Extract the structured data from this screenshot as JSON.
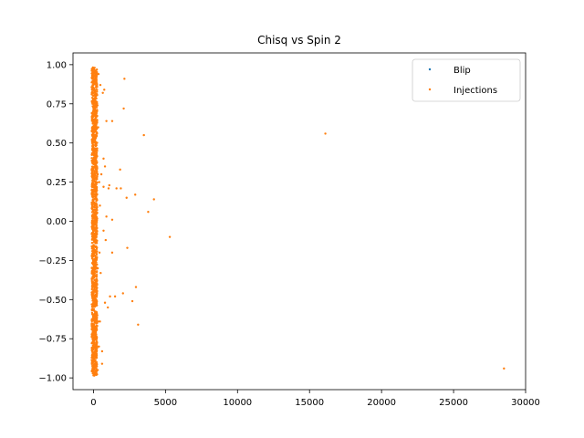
{
  "chart_data": {
    "type": "scatter",
    "title": "Chisq vs Spin 2",
    "xlabel": "",
    "ylabel": "",
    "xlim": [
      -1420,
      30000
    ],
    "ylim": [
      -1.075,
      1.075
    ],
    "xticks": [
      0,
      5000,
      10000,
      15000,
      20000,
      25000,
      30000
    ],
    "xtick_labels": [
      "0",
      "5000",
      "10000",
      "15000",
      "20000",
      "25000",
      "30000"
    ],
    "yticks": [
      -1.0,
      -0.75,
      -0.5,
      -0.25,
      0.0,
      0.25,
      0.5,
      0.75,
      1.0
    ],
    "ytick_labels": [
      "−1.00",
      "−0.75",
      "−0.50",
      "−0.25",
      "0.00",
      "0.25",
      "0.50",
      "0.75",
      "1.00"
    ],
    "grid": false,
    "legend_position": "top-right",
    "series": [
      {
        "name": "Blip",
        "color": "#1f77b4",
        "points": []
      },
      {
        "name": "Injections",
        "color": "#ff7f0e",
        "points": [
          [
            28500,
            -0.94
          ],
          [
            16100,
            0.56
          ],
          [
            5300,
            -0.1
          ],
          [
            4200,
            0.14
          ],
          [
            3800,
            0.06
          ],
          [
            3500,
            0.55
          ],
          [
            3100,
            -0.66
          ],
          [
            2950,
            -0.42
          ],
          [
            2900,
            0.17
          ],
          [
            2700,
            -0.51
          ],
          [
            2350,
            -0.17
          ],
          [
            2300,
            0.15
          ],
          [
            2150,
            0.91
          ],
          [
            2100,
            0.72
          ],
          [
            2050,
            -0.46
          ],
          [
            1900,
            0.21
          ],
          [
            1850,
            0.33
          ],
          [
            1600,
            0.21
          ],
          [
            1500,
            -0.48
          ],
          [
            1300,
            0.64
          ],
          [
            1300,
            0.01
          ],
          [
            1300,
            -0.2
          ],
          [
            1150,
            -0.48
          ],
          [
            1100,
            0.23
          ],
          [
            1050,
            0.21
          ],
          [
            1000,
            -0.55
          ],
          [
            900,
            0.64
          ],
          [
            900,
            0.03
          ],
          [
            850,
            -0.12
          ],
          [
            800,
            0.35
          ],
          [
            800,
            -0.52
          ],
          [
            750,
            0.84
          ],
          [
            700,
            0.4
          ],
          [
            700,
            0.22
          ],
          [
            700,
            -0.06
          ],
          [
            650,
            0.82
          ],
          [
            600,
            -0.83
          ],
          [
            600,
            -0.91
          ],
          [
            550,
            0.3
          ],
          [
            500,
            -0.33
          ],
          [
            480,
            0.87
          ],
          [
            450,
            0.1
          ],
          [
            450,
            -0.64
          ],
          [
            420,
            -0.2
          ],
          [
            400,
            0.25
          ],
          [
            380,
            -0.8
          ],
          [
            350,
            0.94
          ],
          [
            330,
            0.6
          ],
          [
            330,
            -0.64
          ],
          [
            300,
            0.3
          ],
          [
            300,
            -0.3
          ],
          [
            300,
            -0.95
          ],
          [
            280,
            0.74
          ],
          [
            270,
            -0.6
          ],
          [
            260,
            0.45
          ],
          [
            250,
            -0.38
          ],
          [
            240,
            0.05
          ],
          [
            230,
            0.2
          ],
          [
            220,
            -0.9
          ],
          [
            210,
            0.35
          ],
          [
            200,
            0.62
          ],
          [
            200,
            -0.75
          ],
          [
            190,
            -0.05
          ],
          [
            180,
            0.96
          ],
          [
            170,
            -0.2
          ],
          [
            160,
            0.48
          ],
          [
            150,
            0.15
          ],
          [
            150,
            -0.48
          ],
          [
            140,
            0.8
          ],
          [
            130,
            -0.9
          ],
          [
            120,
            -0.6
          ],
          [
            110,
            0.4
          ],
          [
            100,
            -0.1
          ],
          [
            100,
            0.72
          ],
          [
            90,
            -0.35
          ],
          [
            80,
            0.2
          ],
          [
            70,
            -0.78
          ],
          [
            60,
            0.55
          ],
          [
            50,
            -0.25
          ],
          [
            40,
            0.9
          ],
          [
            30,
            0.0
          ],
          [
            20,
            -0.96
          ],
          [
            10,
            0.97
          ],
          [
            0,
            -0.5
          ],
          [
            0,
            0.3
          ]
        ]
      }
    ],
    "dense_band": {
      "series": "Injections",
      "x_range": [
        -120,
        260
      ],
      "y_range": [
        -0.985,
        0.985
      ]
    }
  }
}
